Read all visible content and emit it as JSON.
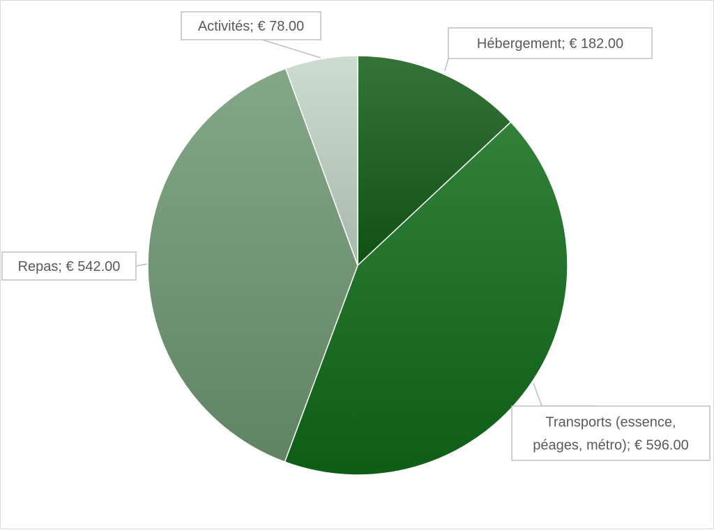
{
  "chart_data": {
    "type": "pie",
    "currency": "€",
    "slices": [
      {
        "label": "Hébergement",
        "label_lines": [
          "Hébergement;  € 182.00"
        ],
        "value": 182.0,
        "color": "#1f5e22"
      },
      {
        "label": "Transports (essence, péages, métro)",
        "label_lines": [
          "Transports (essence,",
          "péages, métro);  € 596.00"
        ],
        "value": 596.0,
        "color": "#1b6b24"
      },
      {
        "label": "Repas",
        "label_lines": [
          "Repas;  € 542.00"
        ],
        "value": 542.0,
        "color": "#6e9172"
      },
      {
        "label": "Activités",
        "label_lines": [
          "Activités;  € 78.00"
        ],
        "value": 78.0,
        "color": "#b6c6b8"
      }
    ],
    "start_angle": "12 o'clock",
    "direction": "clockwise",
    "legend": "none",
    "data_labels": "callouts with category name and value"
  }
}
